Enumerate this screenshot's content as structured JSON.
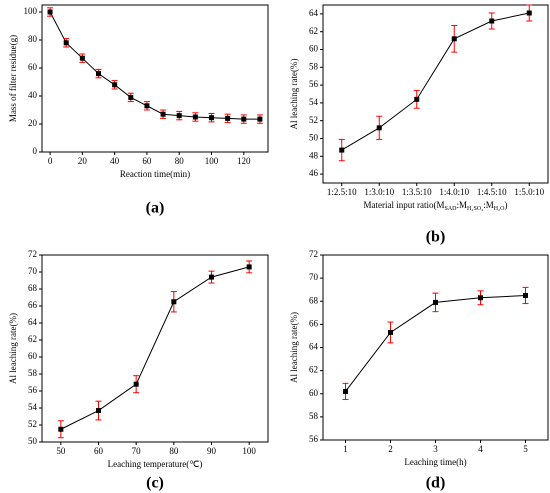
{
  "chart_data": [
    {
      "type": "line",
      "panel_label": "(a)",
      "xlabel": "Reaction time(min)",
      "ylabel": "Mass of filter residue(g)",
      "x": [
        0,
        10,
        20,
        30,
        40,
        50,
        60,
        70,
        80,
        90,
        100,
        110,
        120,
        130
      ],
      "series": [
        {
          "color": "#000000",
          "error_color": "#ff0000",
          "values": [
            100,
            78,
            67,
            56,
            48,
            39,
            33,
            27,
            26,
            25,
            24.5,
            24,
            23.5,
            23.5
          ],
          "errors": [
            3,
            3,
            3,
            3,
            3,
            3,
            3,
            3,
            3,
            3,
            3,
            3,
            3,
            3
          ]
        }
      ],
      "xlim": [
        -5,
        135
      ],
      "xticks": [
        0,
        20,
        40,
        60,
        80,
        100,
        120
      ],
      "ylim": [
        0,
        105
      ],
      "yticks": [
        0,
        20,
        40,
        60,
        80,
        100
      ]
    },
    {
      "type": "line",
      "panel_label": "(b)",
      "xlabel_parts": [
        "Material input ratio(M",
        "SAD",
        ":M",
        "H₂SO₄",
        ":M",
        "H₂O",
        ")"
      ],
      "ylabel": "Al leaching rate(%)",
      "categories": [
        "1:2.5:10",
        "1:3.0:10",
        "1:3.5:10",
        "1:4.0:10",
        "1:4.5:10",
        "1:5.0:10"
      ],
      "series": [
        {
          "color": "#000000",
          "error_color": "#ff0000",
          "values": [
            48.7,
            51.2,
            54.4,
            61.2,
            63.2,
            64.1
          ],
          "errors": [
            1.2,
            1.3,
            1.0,
            1.5,
            0.9,
            0.9
          ]
        }
      ],
      "ylim": [
        45,
        65
      ],
      "yticks": [
        46,
        48,
        50,
        52,
        54,
        56,
        58,
        60,
        62,
        64
      ]
    },
    {
      "type": "line",
      "panel_label": "(c)",
      "xlabel": "Leaching temperature(℃)",
      "ylabel": "Al leaching rate(%)",
      "x": [
        50,
        60,
        70,
        80,
        90,
        100
      ],
      "series": [
        {
          "color": "#000000",
          "error_color": "#ff0000",
          "values": [
            51.5,
            53.7,
            56.8,
            66.5,
            69.4,
            70.6
          ],
          "errors": [
            1.0,
            1.1,
            1.0,
            1.2,
            0.7,
            0.7
          ]
        }
      ],
      "xlim": [
        45,
        105
      ],
      "xticks": [
        50,
        60,
        70,
        80,
        90,
        100
      ],
      "ylim": [
        50,
        72
      ],
      "yticks": [
        50,
        52,
        54,
        56,
        58,
        60,
        62,
        64,
        66,
        68,
        70,
        72
      ]
    },
    {
      "type": "line",
      "panel_label": "(d)",
      "xlabel": "Leaching time(h)",
      "ylabel": "Al leaching rate(%)",
      "x": [
        1,
        2,
        3,
        4,
        5
      ],
      "series": [
        {
          "color": "#000000",
          "error_color": "#ff0000",
          "values": [
            60.2,
            65.3,
            67.9,
            68.3,
            68.5
          ],
          "errors": [
            0.7,
            0.9,
            0.8,
            0.6,
            0.7
          ]
        }
      ],
      "xlim": [
        0.5,
        5.5
      ],
      "xticks": [
        1,
        2,
        3,
        4,
        5
      ],
      "ylim": [
        56,
        72
      ],
      "yticks": [
        56,
        58,
        60,
        62,
        64,
        66,
        68,
        70,
        72
      ]
    }
  ]
}
